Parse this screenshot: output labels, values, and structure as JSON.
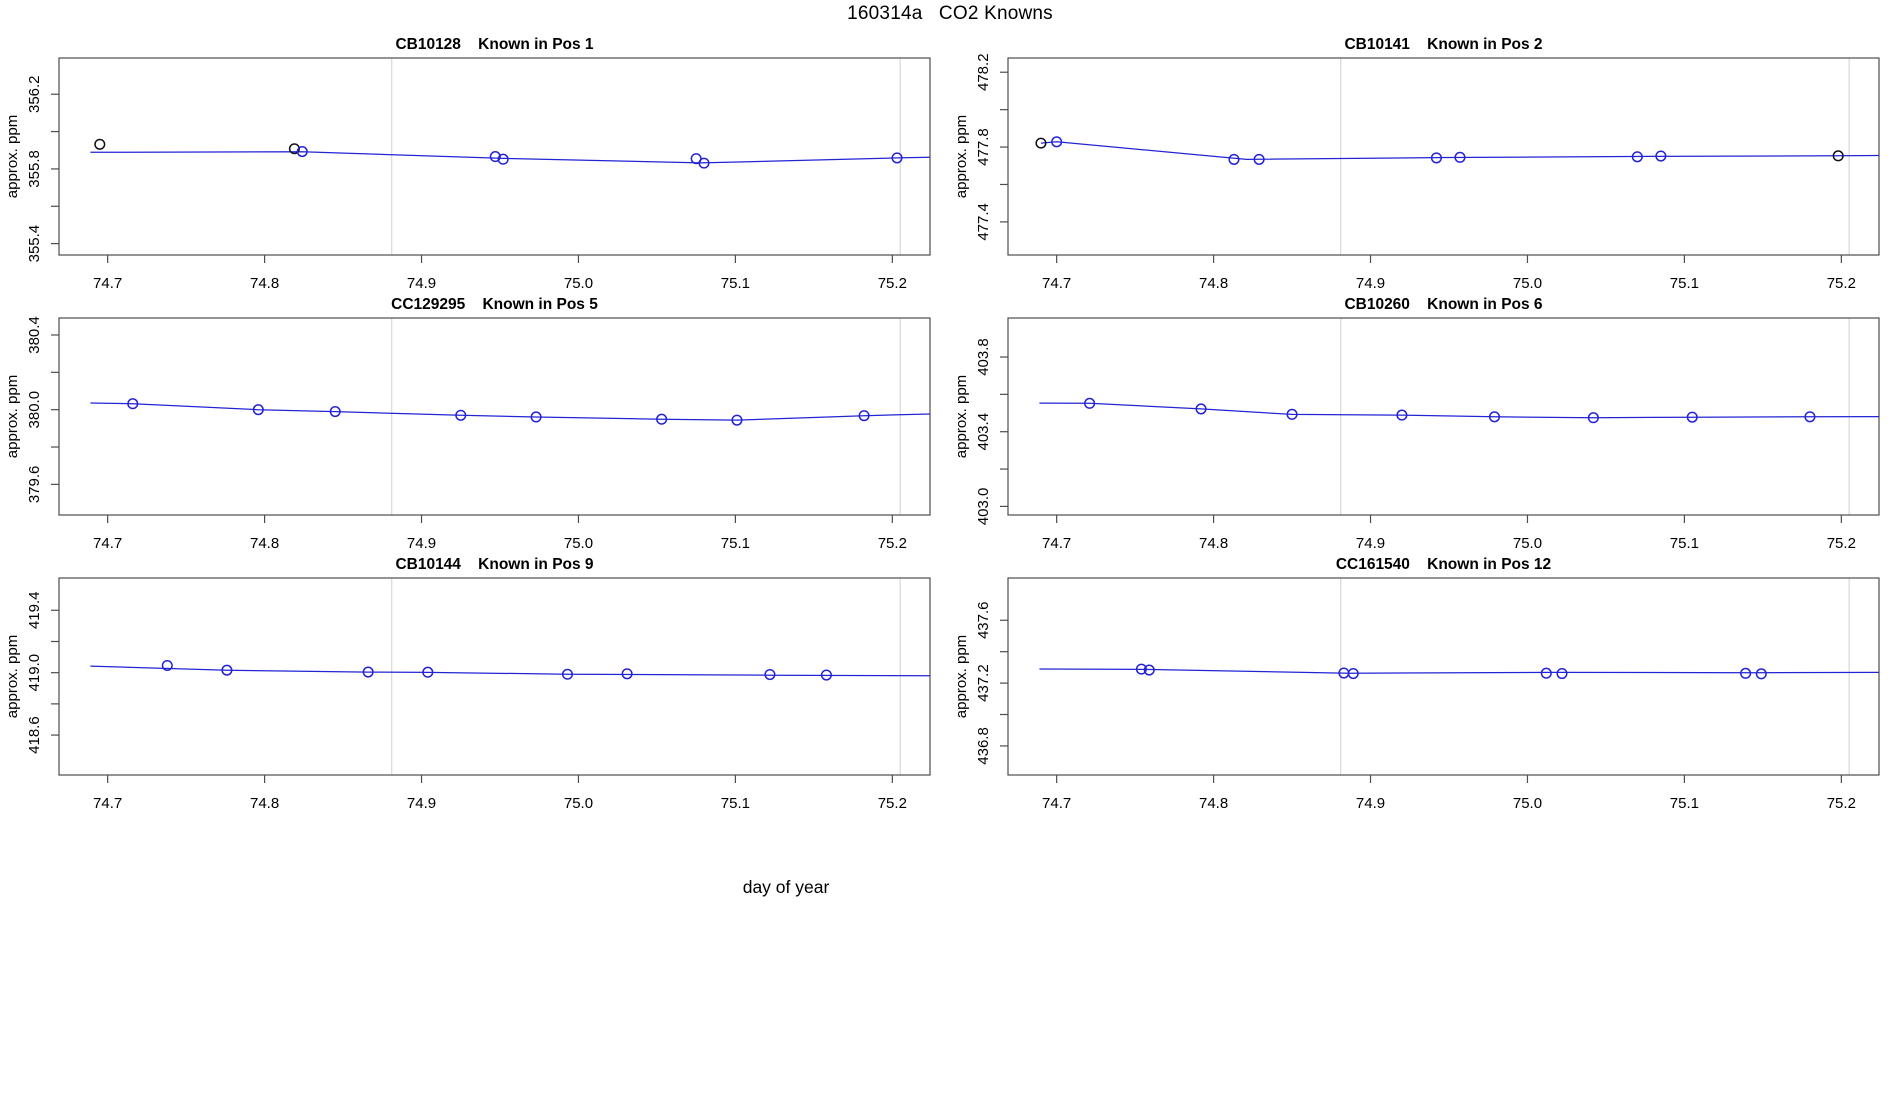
{
  "figure": {
    "title": "160314a   CO2 Knowns",
    "xlabel": "day of year"
  },
  "colors": {
    "line": "#2323d6",
    "point_blue": "#2323d6",
    "point_black": "#101018",
    "gridline": "#d8d8d8",
    "frame": "#4d4d4d",
    "tick": "#4d4d4d",
    "text": "#000000"
  },
  "axes": {
    "xlim": [
      74.669,
      75.224
    ],
    "xticks": [
      74.7,
      74.8,
      74.9,
      75.0,
      75.1,
      75.2
    ],
    "xtick_labels": [
      "74.7",
      "74.8",
      "74.9",
      "75.0",
      "75.1",
      "75.2"
    ],
    "xgrid": [
      74.881,
      75.205
    ],
    "ylabel": "approx. ppm"
  },
  "chart_data": [
    {
      "type": "line",
      "sample": "CB10128",
      "position": "Known in Pos 1",
      "title": "CB10128   Known in Pos 1",
      "ylabel": "approx. ppm",
      "ylim": [
        355.339,
        356.394
      ],
      "yticks": [
        355.4,
        355.6,
        355.8,
        356.0,
        356.2
      ],
      "ytick_labeled": [
        "355.4",
        "355.8",
        "356.2"
      ],
      "points": [
        {
          "x": 74.695,
          "y": 355.932,
          "color": "black"
        },
        {
          "x": 74.819,
          "y": 355.908,
          "color": "black"
        },
        {
          "x": 74.824,
          "y": 355.893,
          "color": "blue"
        },
        {
          "x": 74.947,
          "y": 355.866,
          "color": "blue"
        },
        {
          "x": 74.952,
          "y": 355.852,
          "color": "blue"
        },
        {
          "x": 75.075,
          "y": 355.855,
          "color": "blue"
        },
        {
          "x": 75.08,
          "y": 355.831,
          "color": "blue"
        },
        {
          "x": 75.203,
          "y": 355.859,
          "color": "blue"
        }
      ],
      "line": [
        [
          74.689,
          355.889
        ],
        [
          74.824,
          355.892
        ],
        [
          74.95,
          355.857
        ],
        [
          75.078,
          355.832
        ],
        [
          75.203,
          355.859
        ],
        [
          75.224,
          355.862
        ]
      ]
    },
    {
      "type": "line",
      "sample": "CB10141",
      "position": "Known in Pos 2",
      "title": "CB10141   Known in Pos 2",
      "ylabel": "approx. ppm",
      "ylim": [
        477.223,
        478.276
      ],
      "yticks": [
        477.4,
        477.6,
        477.8,
        478.0,
        478.2
      ],
      "ytick_labeled": [
        "477.4",
        "477.8",
        "478.2"
      ],
      "points": [
        {
          "x": 74.69,
          "y": 477.821,
          "color": "black"
        },
        {
          "x": 74.7,
          "y": 477.828,
          "color": "blue"
        },
        {
          "x": 74.813,
          "y": 477.734,
          "color": "blue"
        },
        {
          "x": 74.829,
          "y": 477.734,
          "color": "blue"
        },
        {
          "x": 74.942,
          "y": 477.742,
          "color": "blue"
        },
        {
          "x": 74.957,
          "y": 477.745,
          "color": "blue"
        },
        {
          "x": 75.07,
          "y": 477.748,
          "color": "blue"
        },
        {
          "x": 75.085,
          "y": 477.752,
          "color": "blue"
        },
        {
          "x": 75.198,
          "y": 477.753,
          "color": "black"
        }
      ],
      "line": [
        [
          74.69,
          477.821
        ],
        [
          74.7,
          477.828
        ],
        [
          74.821,
          477.734
        ],
        [
          74.95,
          477.744
        ],
        [
          75.078,
          477.75
        ],
        [
          75.198,
          477.753
        ],
        [
          75.224,
          477.755
        ]
      ]
    },
    {
      "type": "line",
      "sample": "CC129295",
      "position": "Known in Pos 5",
      "title": "CC129295   Known in Pos 5",
      "ylabel": "approx. ppm",
      "ylim": [
        379.436,
        380.491
      ],
      "yticks": [
        379.6,
        379.8,
        380.0,
        380.2,
        380.4
      ],
      "ytick_labeled": [
        "379.6",
        "380.0",
        "380.4"
      ],
      "points": [
        {
          "x": 74.716,
          "y": 380.032,
          "color": "blue"
        },
        {
          "x": 74.796,
          "y": 380.0,
          "color": "blue"
        },
        {
          "x": 74.845,
          "y": 379.99,
          "color": "blue"
        },
        {
          "x": 74.925,
          "y": 379.97,
          "color": "blue"
        },
        {
          "x": 74.973,
          "y": 379.961,
          "color": "blue"
        },
        {
          "x": 75.053,
          "y": 379.949,
          "color": "blue"
        },
        {
          "x": 75.101,
          "y": 379.944,
          "color": "blue"
        },
        {
          "x": 75.182,
          "y": 379.968,
          "color": "blue"
        }
      ],
      "line": [
        [
          74.689,
          380.036
        ],
        [
          74.716,
          380.032
        ],
        [
          74.796,
          380.0
        ],
        [
          74.845,
          379.99
        ],
        [
          74.925,
          379.97
        ],
        [
          74.973,
          379.961
        ],
        [
          75.053,
          379.949
        ],
        [
          75.101,
          379.944
        ],
        [
          75.182,
          379.968
        ],
        [
          75.224,
          379.977
        ]
      ]
    },
    {
      "type": "line",
      "sample": "CB10260",
      "position": "Known in Pos 6",
      "title": "CB10260   Known in Pos 6",
      "ylabel": "approx. ppm",
      "ylim": [
        402.954,
        404.009
      ],
      "yticks": [
        403.0,
        403.2,
        403.4,
        403.6,
        403.8
      ],
      "ytick_labeled": [
        "403.0",
        "403.4",
        "403.8"
      ],
      "points": [
        {
          "x": 74.721,
          "y": 403.552,
          "color": "blue"
        },
        {
          "x": 74.792,
          "y": 403.522,
          "color": "blue"
        },
        {
          "x": 74.85,
          "y": 403.493,
          "color": "blue"
        },
        {
          "x": 74.92,
          "y": 403.489,
          "color": "blue"
        },
        {
          "x": 74.979,
          "y": 403.48,
          "color": "blue"
        },
        {
          "x": 75.042,
          "y": 403.475,
          "color": "blue"
        },
        {
          "x": 75.105,
          "y": 403.478,
          "color": "blue"
        },
        {
          "x": 75.18,
          "y": 403.48,
          "color": "blue"
        }
      ],
      "line": [
        [
          74.689,
          403.553
        ],
        [
          74.721,
          403.552
        ],
        [
          74.792,
          403.522
        ],
        [
          74.85,
          403.493
        ],
        [
          74.92,
          403.489
        ],
        [
          74.979,
          403.48
        ],
        [
          75.042,
          403.475
        ],
        [
          75.105,
          403.478
        ],
        [
          75.18,
          403.48
        ],
        [
          75.224,
          403.481
        ]
      ]
    },
    {
      "type": "line",
      "sample": "CB10144",
      "position": "Known in Pos 9",
      "title": "CB10144   Known in Pos 9",
      "ylabel": "approx. ppm",
      "ylim": [
        418.344,
        419.607
      ],
      "yticks": [
        418.6,
        418.8,
        419.0,
        419.2,
        419.4
      ],
      "ytick_labeled": [
        "418.6",
        "419.0",
        "419.4"
      ],
      "points": [
        {
          "x": 74.738,
          "y": 419.046,
          "color": "blue"
        },
        {
          "x": 74.776,
          "y": 419.016,
          "color": "blue"
        },
        {
          "x": 74.866,
          "y": 419.004,
          "color": "blue"
        },
        {
          "x": 74.904,
          "y": 419.003,
          "color": "blue"
        },
        {
          "x": 74.993,
          "y": 418.99,
          "color": "blue"
        },
        {
          "x": 75.031,
          "y": 418.993,
          "color": "blue"
        },
        {
          "x": 75.122,
          "y": 418.988,
          "color": "blue"
        },
        {
          "x": 75.158,
          "y": 418.985,
          "color": "blue"
        }
      ],
      "line": [
        [
          74.689,
          419.042
        ],
        [
          74.776,
          419.016
        ],
        [
          74.866,
          419.004
        ],
        [
          74.904,
          419.002
        ],
        [
          74.993,
          418.99
        ],
        [
          75.122,
          418.984
        ],
        [
          75.224,
          418.98
        ]
      ]
    },
    {
      "type": "line",
      "sample": "CC161540",
      "position": "Known in Pos 12",
      "title": "CC161540   Known in Pos 12",
      "ylabel": "approx. ppm",
      "ylim": [
        436.615,
        437.869
      ],
      "yticks": [
        436.8,
        437.0,
        437.2,
        437.4,
        437.6
      ],
      "ytick_labeled": [
        "436.8",
        "437.2",
        "437.6"
      ],
      "points": [
        {
          "x": 74.754,
          "y": 437.289,
          "color": "blue"
        },
        {
          "x": 74.759,
          "y": 437.283,
          "color": "blue"
        },
        {
          "x": 74.883,
          "y": 437.264,
          "color": "blue"
        },
        {
          "x": 74.889,
          "y": 437.261,
          "color": "blue"
        },
        {
          "x": 75.012,
          "y": 437.263,
          "color": "blue"
        },
        {
          "x": 75.022,
          "y": 437.261,
          "color": "blue"
        },
        {
          "x": 75.139,
          "y": 437.262,
          "color": "blue"
        },
        {
          "x": 75.149,
          "y": 437.259,
          "color": "blue"
        }
      ],
      "line": [
        [
          74.689,
          437.29
        ],
        [
          74.756,
          437.287
        ],
        [
          74.886,
          437.263
        ],
        [
          75.017,
          437.268
        ],
        [
          75.144,
          437.266
        ],
        [
          75.224,
          437.268
        ]
      ]
    }
  ]
}
